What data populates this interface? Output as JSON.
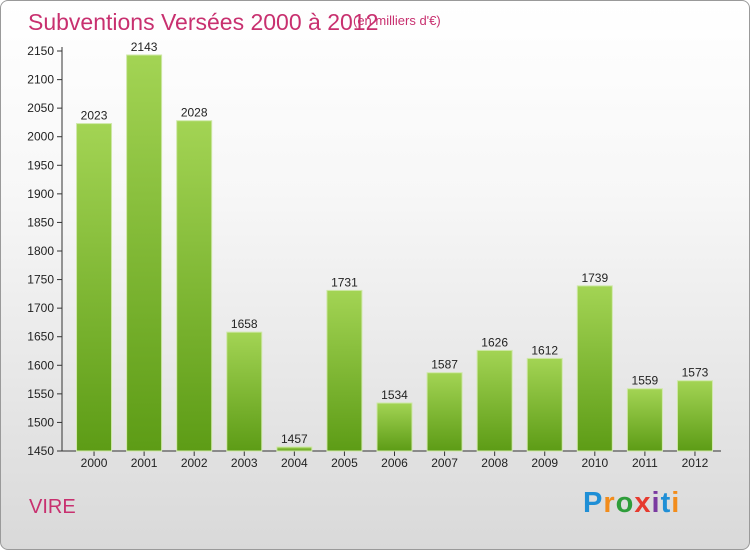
{
  "title": "Subventions Versées 2000 à 2012",
  "subtitle": "(en milliers d'€)",
  "city": "VIRE",
  "logo": {
    "letters": [
      "P",
      "r",
      "o",
      "x",
      "i",
      "t",
      "i"
    ],
    "colors": [
      "#1f8fd6",
      "#f28c1b",
      "#2e9d3a",
      "#e63a2e",
      "#7a3aa0",
      "#1f8fd6",
      "#f28c1b"
    ]
  },
  "colors": {
    "bar": "#7cbf2d",
    "bar_light": "#9fd24f",
    "text_accent": "#c8306f"
  },
  "chart_data": {
    "type": "bar",
    "title": "Subventions Versées 2000 à 2012",
    "subtitle": "(en milliers d'€)",
    "xlabel": "",
    "ylabel": "",
    "ylim": [
      1450,
      2150
    ],
    "yticks": [
      1450,
      1500,
      1550,
      1600,
      1650,
      1700,
      1750,
      1800,
      1850,
      1900,
      1950,
      2000,
      2050,
      2100,
      2150
    ],
    "categories": [
      "2000",
      "2001",
      "2002",
      "2003",
      "2004",
      "2005",
      "2006",
      "2007",
      "2008",
      "2009",
      "2010",
      "2011",
      "2012"
    ],
    "values": [
      2023,
      2143,
      2028,
      1658,
      1457,
      1731,
      1534,
      1587,
      1626,
      1612,
      1739,
      1559,
      1573
    ],
    "grid": false,
    "legend": "none"
  }
}
